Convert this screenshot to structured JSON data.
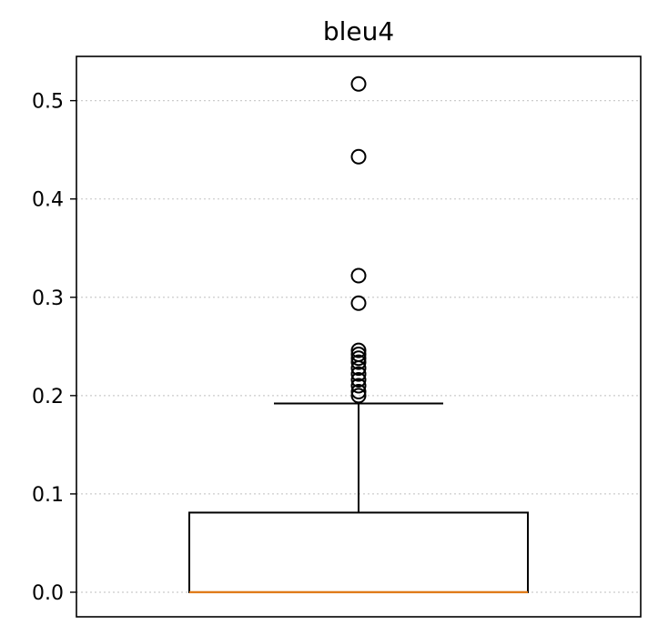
{
  "chart_data": {
    "type": "box",
    "title": "bleu4",
    "xlabel": "",
    "ylabel": "",
    "ylim": [
      -0.025,
      0.545
    ],
    "yticks": [
      0.0,
      0.1,
      0.2,
      0.3,
      0.4,
      0.5
    ],
    "ytick_labels": [
      "0.0",
      "0.1",
      "0.2",
      "0.3",
      "0.4",
      "0.5"
    ],
    "grid": {
      "y": true,
      "x": false,
      "style": "dotted"
    },
    "series": [
      {
        "median": 0.0,
        "q1": 0.0,
        "q3": 0.081,
        "whisker_low": 0.0,
        "whisker_high": 0.192,
        "outliers": [
          0.2,
          0.204,
          0.21,
          0.216,
          0.222,
          0.228,
          0.234,
          0.238,
          0.242,
          0.246,
          0.294,
          0.322,
          0.443,
          0.517
        ]
      }
    ],
    "colors": {
      "median": "#e07b1a",
      "box": "#000000",
      "grid": "#cccccc"
    }
  }
}
